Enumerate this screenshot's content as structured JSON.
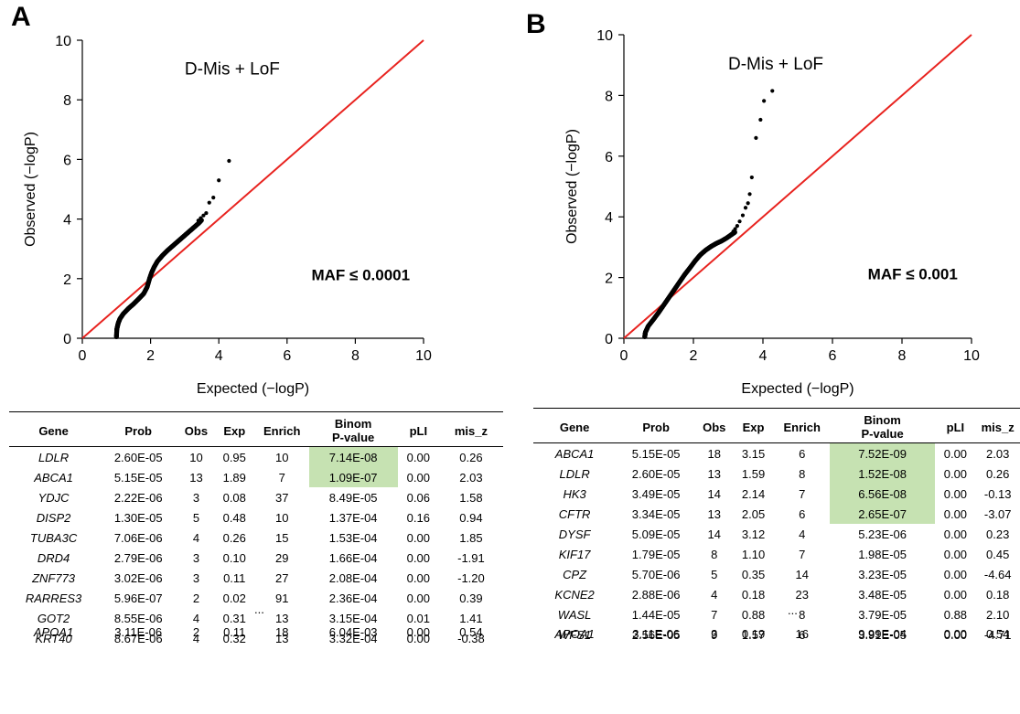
{
  "chart_data": [
    {
      "type": "scatter",
      "panel_label": "A",
      "annotation": "D-Mis + LoF",
      "maf_label": "MAF ≤ 0.0001",
      "xlabel": "Expected (−logP)",
      "ylabel": "Observed (−logP)",
      "xlim": [
        0,
        10
      ],
      "ylim": [
        0,
        10
      ],
      "xticks": [
        "0",
        "2",
        "4",
        "6",
        "8",
        "10"
      ],
      "yticks": [
        "0",
        "2",
        "4",
        "6",
        "8",
        "10"
      ],
      "reference_line": {
        "x": [
          0,
          10
        ],
        "y": [
          0,
          10
        ],
        "color": "#e8231f"
      },
      "point_color": "#000000",
      "curve": {
        "x": [
          1.0,
          1.01,
          1.05,
          1.1,
          1.2,
          1.35,
          1.5,
          1.65,
          1.8,
          1.9,
          1.97,
          2.03,
          2.1,
          2.2,
          2.35,
          2.5,
          2.65,
          2.8,
          2.95,
          3.1,
          3.25,
          3.4,
          3.5
        ],
        "y": [
          0.05,
          0.3,
          0.5,
          0.65,
          0.82,
          1.0,
          1.15,
          1.32,
          1.5,
          1.72,
          2.0,
          2.2,
          2.38,
          2.58,
          2.78,
          2.95,
          3.1,
          3.25,
          3.4,
          3.55,
          3.7,
          3.85,
          3.97
        ]
      },
      "outliers": {
        "x": [
          3.4,
          3.47,
          3.55,
          3.63,
          3.72,
          3.84,
          4.0,
          4.3
        ],
        "y": [
          3.95,
          4.03,
          4.12,
          4.2,
          4.55,
          4.72,
          5.3,
          5.95
        ]
      },
      "table": {
        "columns": [
          "Gene",
          "Prob",
          "Obs",
          "Exp",
          "Enrich",
          "Binom P-value",
          "pLI",
          "mis_z"
        ],
        "rows": [
          [
            "LDLR",
            "2.60E-05",
            "10",
            "0.95",
            "10",
            "7.14E-08",
            "0.00",
            "0.26"
          ],
          [
            "ABCA1",
            "5.15E-05",
            "13",
            "1.89",
            "7",
            "1.09E-07",
            "0.00",
            "2.03"
          ],
          [
            "YDJC",
            "2.22E-06",
            "3",
            "0.08",
            "37",
            "8.49E-05",
            "0.06",
            "1.58"
          ],
          [
            "DISP2",
            "1.30E-05",
            "5",
            "0.48",
            "10",
            "1.37E-04",
            "0.16",
            "0.94"
          ],
          [
            "TUBA3C",
            "7.06E-06",
            "4",
            "0.26",
            "15",
            "1.53E-04",
            "0.00",
            "1.85"
          ],
          [
            "DRD4",
            "2.79E-06",
            "3",
            "0.10",
            "29",
            "1.66E-04",
            "0.00",
            "-1.91"
          ],
          [
            "ZNF773",
            "3.02E-06",
            "3",
            "0.11",
            "27",
            "2.08E-04",
            "0.00",
            "-1.20"
          ],
          [
            "RARRES3",
            "5.96E-07",
            "2",
            "0.02",
            "91",
            "2.36E-04",
            "0.00",
            "0.39"
          ],
          [
            "GOT2",
            "8.55E-06",
            "4",
            "0.31",
            "13",
            "3.15E-04",
            "0.01",
            "1.41"
          ],
          [
            "KRT40",
            "8.67E-06",
            "4",
            "0.32",
            "13",
            "3.32E-04",
            "0.00",
            "-0.38"
          ]
        ],
        "ellipsis": "...",
        "extra_row": [
          "APOA1",
          "3.11E-06",
          "2",
          "0.11",
          "18",
          "6.04E-03",
          "0.00",
          "0.54"
        ],
        "highlighted_rows": 2,
        "highlight_color": "#c6e2b2"
      }
    },
    {
      "type": "scatter",
      "panel_label": "B",
      "annotation": "D-Mis + LoF",
      "maf_label": "MAF ≤ 0.001",
      "xlabel": "Expected (−logP)",
      "ylabel": "Observed (−logP)",
      "xlim": [
        0,
        10
      ],
      "ylim": [
        0,
        10
      ],
      "xticks": [
        "0",
        "2",
        "4",
        "6",
        "8",
        "10"
      ],
      "yticks": [
        "0",
        "2",
        "4",
        "6",
        "8",
        "10"
      ],
      "reference_line": {
        "x": [
          0,
          10
        ],
        "y": [
          0,
          10
        ],
        "color": "#e8231f"
      },
      "point_color": "#000000",
      "curve": {
        "x": [
          0.6,
          0.62,
          0.7,
          0.85,
          1.0,
          1.15,
          1.3,
          1.45,
          1.6,
          1.75,
          1.9,
          2.05,
          2.2,
          2.35,
          2.5,
          2.65,
          2.8,
          2.95,
          3.1,
          3.2
        ],
        "y": [
          0.05,
          0.2,
          0.4,
          0.62,
          0.85,
          1.1,
          1.35,
          1.6,
          1.85,
          2.1,
          2.32,
          2.55,
          2.75,
          2.9,
          3.02,
          3.12,
          3.2,
          3.3,
          3.42,
          3.5
        ]
      },
      "outliers": {
        "x": [
          3.15,
          3.2,
          3.26,
          3.33,
          3.42,
          3.5,
          3.57,
          3.62,
          3.68,
          3.8,
          3.93,
          4.27
        ],
        "y": [
          3.52,
          3.6,
          3.7,
          3.85,
          4.05,
          4.3,
          4.45,
          4.75,
          5.3,
          6.6,
          7.2,
          8.15
        ]
      },
      "extra_points": {
        "x": [
          4.03
        ],
        "y": [
          7.82
        ]
      },
      "table": {
        "columns": [
          "Gene",
          "Prob",
          "Obs",
          "Exp",
          "Enrich",
          "Binom P-value",
          "pLI",
          "mis_z"
        ],
        "rows": [
          [
            "ABCA1",
            "5.15E-05",
            "18",
            "3.15",
            "6",
            "7.52E-09",
            "0.00",
            "2.03"
          ],
          [
            "LDLR",
            "2.60E-05",
            "13",
            "1.59",
            "8",
            "1.52E-08",
            "0.00",
            "0.26"
          ],
          [
            "HK3",
            "3.49E-05",
            "14",
            "2.14",
            "7",
            "6.56E-08",
            "0.00",
            "-0.13"
          ],
          [
            "CFTR",
            "3.34E-05",
            "13",
            "2.05",
            "6",
            "2.65E-07",
            "0.00",
            "-3.07"
          ],
          [
            "DYSF",
            "5.09E-05",
            "14",
            "3.12",
            "4",
            "5.23E-06",
            "0.00",
            "0.23"
          ],
          [
            "KIF17",
            "1.79E-05",
            "8",
            "1.10",
            "7",
            "1.98E-05",
            "0.00",
            "0.45"
          ],
          [
            "CPZ",
            "5.70E-06",
            "5",
            "0.35",
            "14",
            "3.23E-05",
            "0.00",
            "-4.64"
          ],
          [
            "KCNE2",
            "2.88E-06",
            "4",
            "0.18",
            "23",
            "3.48E-05",
            "0.00",
            "0.18"
          ],
          [
            "WASL",
            "1.44E-05",
            "7",
            "0.88",
            "8",
            "3.79E-05",
            "0.88",
            "2.10"
          ],
          [
            "WFS1",
            "2.56E-05",
            "9",
            "1.57",
            "6",
            "3.91E-05",
            "0.00",
            "-4.71"
          ]
        ],
        "ellipsis": "...",
        "extra_row": [
          "APOA1",
          "3.11E-06",
          "3",
          "0.19",
          "16",
          "9.99E-04",
          "0.00",
          "0.54"
        ],
        "highlighted_rows": 4,
        "highlight_color": "#c6e2b2"
      }
    }
  ]
}
